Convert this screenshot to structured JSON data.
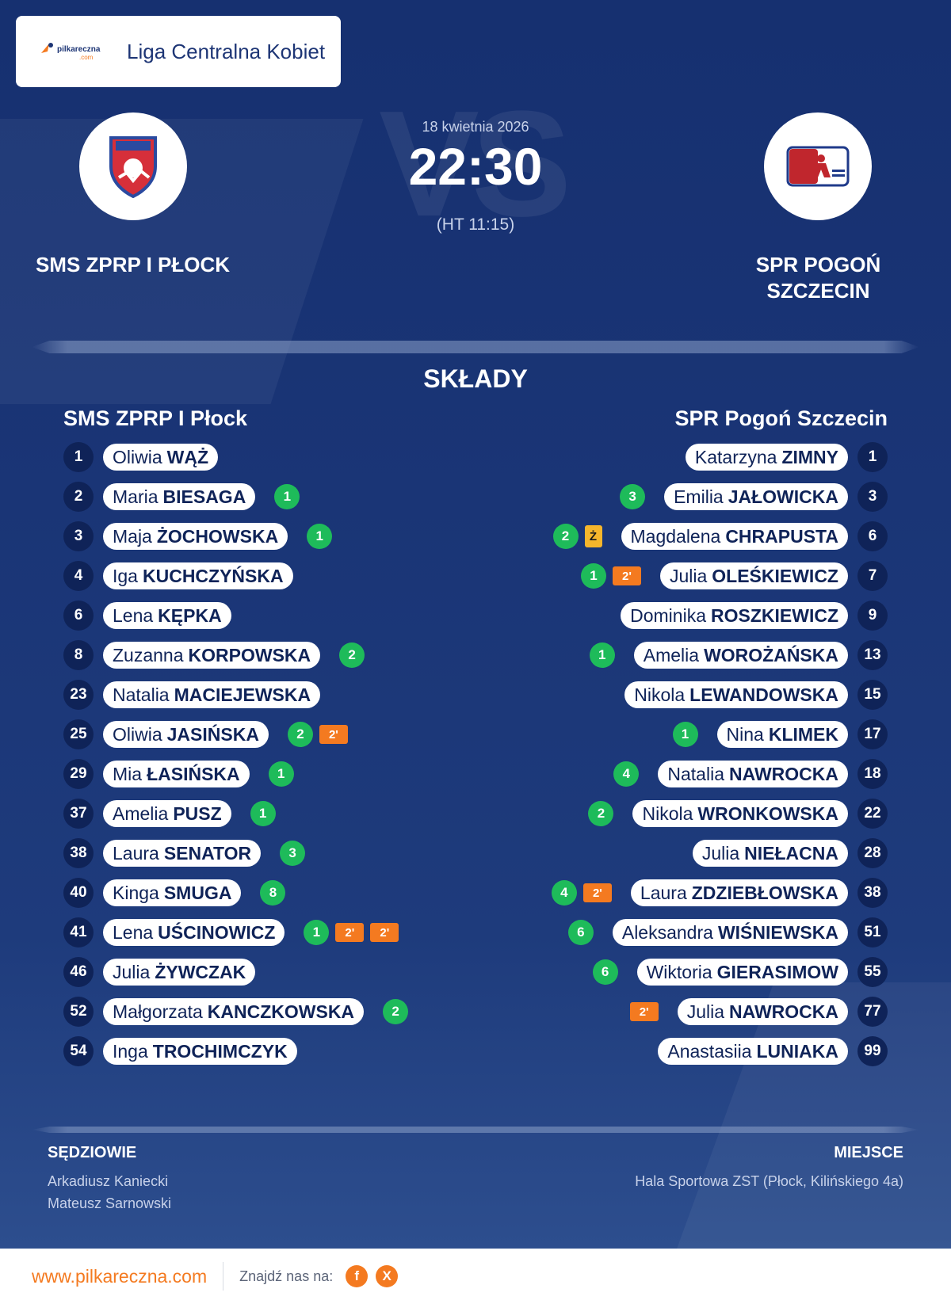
{
  "header": {
    "brand_text": "pilkareczna",
    "brand_sub": ".com",
    "league": "Liga Centralna Kobiet"
  },
  "match": {
    "date": "18 kwietnia 2026",
    "score": "22:30",
    "halftime": "(HT 11:15)",
    "home_name": "SMS ZPRP I PŁOCK",
    "away_name": "SPR POGOŃ SZCZECIN"
  },
  "lineups": {
    "title": "SKŁADY",
    "home_title": "SMS ZPRP I Płock",
    "away_title": "SPR Pogoń Szczecin",
    "home": [
      {
        "num": "1",
        "first": "Oliwia",
        "last": "WĄŻ",
        "goals": "",
        "cards": []
      },
      {
        "num": "2",
        "first": "Maria",
        "last": "BIESAGA",
        "goals": "1",
        "cards": []
      },
      {
        "num": "3",
        "first": "Maja",
        "last": "ŻOCHOWSKA",
        "goals": "1",
        "cards": []
      },
      {
        "num": "4",
        "first": "Iga",
        "last": "KUCHCZYŃSKA",
        "goals": "",
        "cards": []
      },
      {
        "num": "6",
        "first": "Lena",
        "last": "KĘPKA",
        "goals": "",
        "cards": []
      },
      {
        "num": "8",
        "first": "Zuzanna",
        "last": "KORPOWSKA",
        "goals": "2",
        "cards": []
      },
      {
        "num": "23",
        "first": "Natalia",
        "last": "MACIEJEWSKA",
        "goals": "",
        "cards": []
      },
      {
        "num": "25",
        "first": "Oliwia",
        "last": "JASIŃSKA",
        "goals": "2",
        "cards": [
          "2'"
        ]
      },
      {
        "num": "29",
        "first": "Mia",
        "last": "ŁASIŃSKA",
        "goals": "1",
        "cards": []
      },
      {
        "num": "37",
        "first": "Amelia",
        "last": "PUSZ",
        "goals": "1",
        "cards": []
      },
      {
        "num": "38",
        "first": "Laura",
        "last": "SENATOR",
        "goals": "3",
        "cards": []
      },
      {
        "num": "40",
        "first": "Kinga",
        "last": "SMUGA",
        "goals": "8",
        "cards": []
      },
      {
        "num": "41",
        "first": "Lena",
        "last": "UŚCINOWICZ",
        "goals": "1",
        "cards": [
          "2'",
          "2'"
        ]
      },
      {
        "num": "46",
        "first": "Julia",
        "last": "ŻYWCZAK",
        "goals": "",
        "cards": []
      },
      {
        "num": "52",
        "first": "Małgorzata",
        "last": "KANCZKOWSKA",
        "goals": "2",
        "cards": []
      },
      {
        "num": "54",
        "first": "Inga",
        "last": "TROCHIMCZYK",
        "goals": "",
        "cards": []
      }
    ],
    "away": [
      {
        "num": "1",
        "first": "Katarzyna",
        "last": "ZIMNY",
        "goals": "",
        "cards": []
      },
      {
        "num": "3",
        "first": "Emilia",
        "last": "JAŁOWICKA",
        "goals": "3",
        "cards": []
      },
      {
        "num": "6",
        "first": "Magdalena",
        "last": "CHRAPUSTA",
        "goals": "2",
        "cards": [
          "Ż"
        ]
      },
      {
        "num": "7",
        "first": "Julia",
        "last": "OLEŚKIEWICZ",
        "goals": "1",
        "cards": [
          "2'"
        ]
      },
      {
        "num": "9",
        "first": "Dominika",
        "last": "ROSZKIEWICZ",
        "goals": "",
        "cards": []
      },
      {
        "num": "13",
        "first": "Amelia",
        "last": "WOROŻAŃSKA",
        "goals": "1",
        "cards": []
      },
      {
        "num": "15",
        "first": "Nikola",
        "last": "LEWANDOWSKA",
        "goals": "",
        "cards": []
      },
      {
        "num": "17",
        "first": "Nina",
        "last": "KLIMEK",
        "goals": "1",
        "cards": []
      },
      {
        "num": "18",
        "first": "Natalia",
        "last": "NAWROCKA",
        "goals": "4",
        "cards": []
      },
      {
        "num": "22",
        "first": "Nikola",
        "last": "WRONKOWSKA",
        "goals": "2",
        "cards": []
      },
      {
        "num": "28",
        "first": "Julia",
        "last": "NIEŁACNA",
        "goals": "",
        "cards": []
      },
      {
        "num": "38",
        "first": "Laura",
        "last": "ZDZIEBŁOWSKA",
        "goals": "4",
        "cards": [
          "2'"
        ]
      },
      {
        "num": "51",
        "first": "Aleksandra",
        "last": "WIŚNIEWSKA",
        "goals": "6",
        "cards": []
      },
      {
        "num": "55",
        "first": "Wiktoria",
        "last": "GIERASIMOW",
        "goals": "6",
        "cards": []
      },
      {
        "num": "77",
        "first": "Julia",
        "last": "NAWROCKA",
        "goals": "",
        "cards": [
          "2'"
        ]
      },
      {
        "num": "99",
        "first": "Anastasiia",
        "last": "LUNIAKA",
        "goals": "",
        "cards": []
      }
    ]
  },
  "footer": {
    "referees_title": "SĘDZIOWIE",
    "referees": [
      "Arkadiusz Kaniecki",
      "Mateusz Sarnowski"
    ],
    "venue_title": "MIEJSCE",
    "venue": "Hala Sportowa ZST (Płock, Kilińskiego 4a)"
  },
  "bottom_bar": {
    "url": "www.pilkareczna.com",
    "find_us": "Znajdź nas na:",
    "facebook": "f",
    "x": "X"
  },
  "colors": {
    "navy": "#163070",
    "goal_green": "#1ebb5a",
    "suspension_orange": "#f47a20",
    "yellow_card": "#f6b62c"
  }
}
